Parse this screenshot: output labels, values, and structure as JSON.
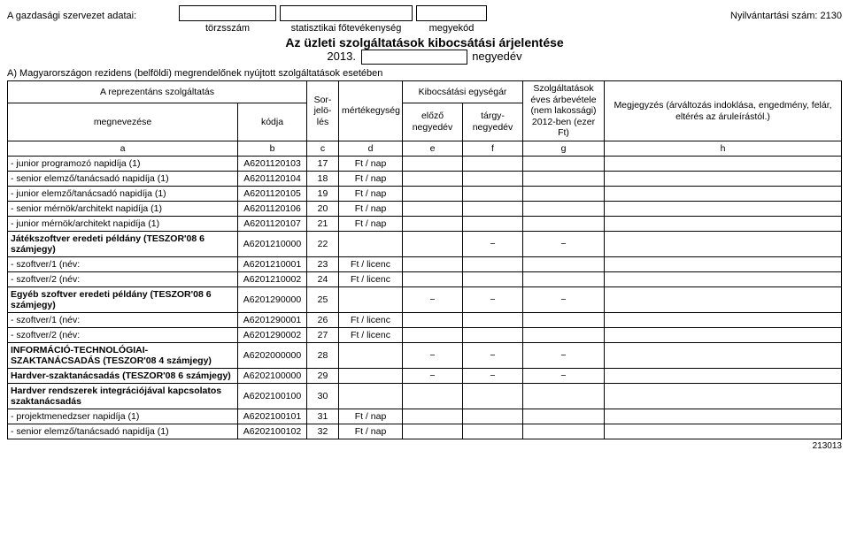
{
  "header": {
    "org_label": "A gazdasági szervezet adatai:",
    "reg_label": "Nyilvántartási szám: 2130",
    "field_labels": {
      "a": "törzsszám",
      "b": "statisztikai főtevékenység",
      "c": "megyekód"
    },
    "title": "Az üzleti szolgáltatások kibocsátási árjelentése",
    "year": "2013.",
    "quarter_suffix": "negyedév",
    "section_a": "A) Magyarországon rezidens (belföldi) megrendelőnek nyújtott szolgáltatások esetében"
  },
  "table_headers": {
    "service": "A reprezentáns szolgáltatás",
    "name": "megnevezése",
    "code": "kódja",
    "sort": "Sor-jelö-lés",
    "unit": "mértékegység",
    "unitprice": "Kibocsátási egységár",
    "prev": "előző negyedév",
    "curr": "tárgy-negyedév",
    "revenue": "Szolgáltatások éves árbevétele (nem lakossági) 2012-ben (ezer Ft)",
    "note": "Megjegyzés (árváltozás indoklása, engedmény, felár, eltérés az áruleírástól.)",
    "letters": {
      "a": "a",
      "b": "b",
      "c": "c",
      "d": "d",
      "e": "e",
      "f": "f",
      "g": "g",
      "h": "h"
    }
  },
  "rows": [
    {
      "name": " - junior programozó napidíja (1)",
      "code": "A6201120103",
      "num": "17",
      "unit": "Ft / nap"
    },
    {
      "name": " - senior elemző/tanácsadó napidíja (1)",
      "code": "A6201120104",
      "num": "18",
      "unit": "Ft / nap"
    },
    {
      "name": " - junior elemző/tanácsadó napidíja (1)",
      "code": "A6201120105",
      "num": "19",
      "unit": "Ft / nap"
    },
    {
      "name": " - senior mérnök/architekt napidíja (1)",
      "code": "A6201120106",
      "num": "20",
      "unit": "Ft / nap"
    },
    {
      "name": " - junior mérnök/architekt napidíja (1)",
      "code": "A6201120107",
      "num": "21",
      "unit": "Ft / nap"
    },
    {
      "name": "Játékszoftver eredeti példány (TESZOR'08 6 számjegy)",
      "code": "A6201210000",
      "num": "22",
      "unit": "",
      "bold": true,
      "dash_fg": true
    },
    {
      "name": " - szoftver/1 (név:",
      "code": "A6201210001",
      "num": "23",
      "unit": "Ft / licenc"
    },
    {
      "name": " - szoftver/2 (név:",
      "code": "A6201210002",
      "num": "24",
      "unit": "Ft / licenc"
    },
    {
      "name": "Egyéb szoftver eredeti példány (TESZOR'08 6 számjegy)",
      "code": "A6201290000",
      "num": "25",
      "unit": "",
      "bold": true,
      "dash_efg": true
    },
    {
      "name": " - szoftver/1 (név:",
      "code": "A6201290001",
      "num": "26",
      "unit": "Ft / licenc"
    },
    {
      "name": " - szoftver/2 (név:",
      "code": "A6201290002",
      "num": "27",
      "unit": "Ft / licenc"
    },
    {
      "name": "INFORMÁCIÓ-TECHNOLÓGIAI-SZAKTANÁCSADÁS (TESZOR'08 4 számjegy)",
      "code": "A6202000000",
      "num": "28",
      "unit": "",
      "bold": true,
      "dash_efg": true
    },
    {
      "name": "Hardver-szaktanácsadás (TESZOR'08 6 számjegy)",
      "code": "A6202100000",
      "num": "29",
      "unit": "",
      "bold": true,
      "dash_efg": true
    },
    {
      "name": "Hardver rendszerek integrációjával kapcsolatos szaktanácsadás",
      "code": "A6202100100",
      "num": "30",
      "unit": "",
      "bold": true
    },
    {
      "name": " - projektmenedzser napidíja (1)",
      "code": "A6202100101",
      "num": "31",
      "unit": "Ft / nap"
    },
    {
      "name": " - senior elemző/tanácsadó napidíja (1)",
      "code": "A6202100102",
      "num": "32",
      "unit": "Ft / nap"
    }
  ],
  "footer": {
    "code": "213013"
  },
  "dash": "−"
}
